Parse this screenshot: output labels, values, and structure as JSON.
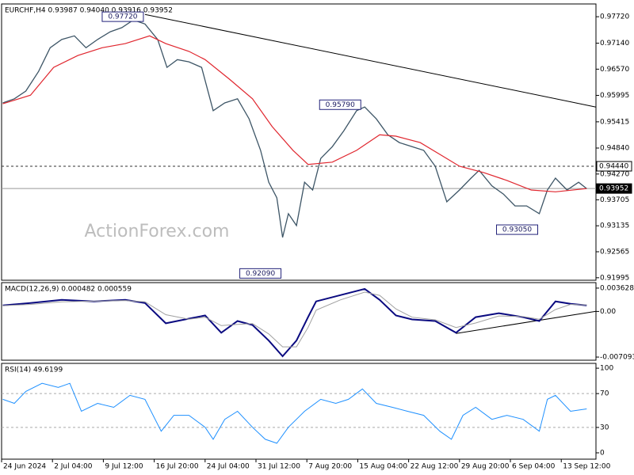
{
  "watermark": "ActionForex.com",
  "chart_data": [
    {
      "type": "line",
      "title": "EURCHF,H4  0.93987 0.94040 0.93916 0.93952",
      "xlim": [
        0,
        514
      ],
      "ylim": [
        0.9194,
        0.98
      ],
      "yticks": [
        {
          "value": 0.9772,
          "label": "0.97720"
        },
        {
          "value": 0.9714,
          "label": "0.97140"
        },
        {
          "value": 0.9657,
          "label": "0.96570"
        },
        {
          "value": 0.95995,
          "label": "0.95995"
        },
        {
          "value": 0.95415,
          "label": "0.95415"
        },
        {
          "value": 0.9484,
          "label": "0.94840"
        },
        {
          "value": 0.9427,
          "label": "0.94270"
        },
        {
          "value": 0.93705,
          "label": "0.93705"
        },
        {
          "value": 0.93135,
          "label": "0.93135"
        },
        {
          "value": 0.92565,
          "label": "0.92565"
        },
        {
          "value": 0.91995,
          "label": "0.91995"
        }
      ],
      "series": [
        {
          "name": "EURCHF",
          "color": "#3d5566",
          "width": 1.3,
          "x": [
            1,
            11,
            21,
            32,
            42,
            52,
            63,
            73,
            83,
            94,
            104,
            114,
            124,
            135,
            143,
            152,
            162,
            173,
            183,
            193,
            204,
            214,
            224,
            231,
            238,
            243,
            248,
            255,
            262,
            269,
            276,
            286,
            296,
            307,
            314,
            324,
            334,
            344,
            355,
            365,
            375,
            385,
            396,
            406,
            413,
            424,
            434,
            444,
            454,
            465,
            472,
            479,
            489,
            499,
            506
          ],
          "values": [
            0.9583,
            0.9592,
            0.9609,
            0.9652,
            0.9704,
            0.9722,
            0.973,
            0.9704,
            0.9722,
            0.9739,
            0.9748,
            0.9765,
            0.9756,
            0.9722,
            0.9661,
            0.9678,
            0.9673,
            0.9661,
            0.9566,
            0.9583,
            0.9592,
            0.9548,
            0.9479,
            0.9409,
            0.9375,
            0.9288,
            0.934,
            0.9314,
            0.9409,
            0.9392,
            0.9461,
            0.9487,
            0.9522,
            0.9566,
            0.9574,
            0.9548,
            0.9513,
            0.9496,
            0.9487,
            0.9479,
            0.9444,
            0.9366,
            0.9392,
            0.9418,
            0.9435,
            0.9401,
            0.9383,
            0.9357,
            0.9357,
            0.934,
            0.9392,
            0.9418,
            0.9392,
            0.9409,
            0.9395
          ]
        },
        {
          "name": "MA",
          "color": "#e0262e",
          "width": 1.2,
          "x": [
            1,
            25,
            45,
            66,
            87,
            107,
            128,
            142,
            162,
            176,
            197,
            217,
            234,
            252,
            265,
            286,
            307,
            327,
            341,
            362,
            379,
            396,
            417,
            437,
            458,
            479,
            506
          ],
          "values": [
            0.9581,
            0.96,
            0.9661,
            0.9687,
            0.9704,
            0.9713,
            0.973,
            0.9713,
            0.9696,
            0.9678,
            0.9635,
            0.9592,
            0.9531,
            0.9479,
            0.9448,
            0.9453,
            0.9479,
            0.9513,
            0.951,
            0.9496,
            0.947,
            0.9444,
            0.943,
            0.9413,
            0.9392,
            0.9388,
            0.9395
          ]
        }
      ],
      "trendline": {
        "color": "#000000",
        "x": [
          124,
          514
        ],
        "values": [
          0.9777,
          0.9574
        ]
      },
      "hlines": [
        {
          "value": 0.9444,
          "label": "0.94440",
          "style": "dashed",
          "fill": "#ffffff",
          "text_color": "#000000"
        },
        {
          "value": 0.93952,
          "label": "0.93952",
          "style": "solid",
          "fill": "#000000",
          "text_color": "#ffffff"
        }
      ],
      "annotations": [
        {
          "x": 124,
          "value": 0.9772,
          "label": "0.97720"
        },
        {
          "x": 312,
          "value": 0.9579,
          "label": "0.95790"
        },
        {
          "x": 243,
          "value": 0.9209,
          "label": "0.92090"
        },
        {
          "x": 465,
          "value": 0.9305,
          "label": "0.93050"
        }
      ]
    },
    {
      "type": "line",
      "title": "MACD(12,26,9) 0.000482 0.000559",
      "xlim": [
        0,
        514
      ],
      "ylim": [
        -0.00758,
        0.00448
      ],
      "yticks": [
        0.003628,
        {
          "value": 0,
          "label": "0.00"
        },
        -0.007093
      ],
      "series": [
        {
          "name": "MACD",
          "color": "#0a0a80",
          "width": 2,
          "x": [
            1,
            25,
            52,
            80,
            107,
            124,
            142,
            162,
            176,
            190,
            204,
            217,
            231,
            243,
            255,
            265,
            272,
            293,
            314,
            327,
            341,
            355,
            375,
            393,
            410,
            430,
            451,
            465,
            479,
            492,
            506
          ],
          "values": [
            0.00095,
            0.00132,
            0.0018,
            0.00156,
            0.0018,
            0.00132,
            -0.00185,
            -0.00112,
            -0.00063,
            -0.00331,
            -0.00149,
            -0.0021,
            -0.00453,
            -0.00697,
            -0.00453,
            -0.00088,
            0.00156,
            0.00253,
            0.00351,
            0.0018,
            -0.00063,
            -0.00124,
            -0.00149,
            -0.00331,
            -0.00088,
            -0.00027,
            -0.00088,
            -0.00149,
            0.00156,
            0.00119,
            0.00095
          ]
        },
        {
          "name": "Signal",
          "color": "#a0a0a0",
          "width": 1,
          "x": [
            1,
            25,
            52,
            80,
            107,
            124,
            142,
            162,
            176,
            190,
            204,
            217,
            231,
            243,
            255,
            265,
            272,
            293,
            314,
            327,
            341,
            355,
            375,
            393,
            410,
            430,
            451,
            465,
            479,
            492,
            506
          ],
          "values": [
            0.0009,
            0.0011,
            0.0015,
            0.0016,
            0.0017,
            0.0015,
            -0.0005,
            -0.0012,
            -0.0009,
            -0.0022,
            -0.002,
            -0.0019,
            -0.0035,
            -0.0055,
            -0.0055,
            -0.0025,
            0.0002,
            0.0018,
            0.003,
            0.0025,
            0.0004,
            -0.0009,
            -0.0013,
            -0.0025,
            -0.0018,
            -0.0007,
            -0.0008,
            -0.0012,
            0.0003,
            0.0011,
            0.001
          ]
        }
      ],
      "trendline": {
        "color": "#000000",
        "x": [
          393,
          514
        ],
        "values": [
          -0.00343,
          2e-05
        ]
      }
    },
    {
      "type": "line",
      "title": "RSI(14) 49.6199",
      "xlim": [
        0,
        514
      ],
      "ylim": [
        -7.5,
        105.7
      ],
      "yticks": [
        100,
        70,
        30,
        0
      ],
      "levels": [
        70,
        30
      ],
      "xticks": [
        {
          "value": 0,
          "label": "24 Jun 2024"
        },
        {
          "value": 44,
          "label": "2 Jul 04:00"
        },
        {
          "value": 88,
          "label": "9 Jul 12:00"
        },
        {
          "value": 132,
          "label": "16 Jul 20:00"
        },
        {
          "value": 176,
          "label": "24 Jul 04:00"
        },
        {
          "value": 220,
          "label": "31 Jul 12:00"
        },
        {
          "value": 264,
          "label": "7 Aug 20:00"
        },
        {
          "value": 308,
          "label": "15 Aug 04:00"
        },
        {
          "value": 352,
          "label": "22 Aug 12:00"
        },
        {
          "value": 396,
          "label": "29 Aug 20:00"
        },
        {
          "value": 440,
          "label": "6 Sep 04:00"
        },
        {
          "value": 484,
          "label": "13 Sep 12:00"
        }
      ],
      "series": [
        {
          "name": "RSI",
          "color": "#1e90ff",
          "width": 1,
          "x": [
            1,
            11,
            21,
            35,
            49,
            59,
            69,
            83,
            97,
            111,
            124,
            138,
            149,
            162,
            176,
            183,
            193,
            204,
            217,
            228,
            238,
            248,
            262,
            276,
            289,
            300,
            312,
            324,
            338,
            351,
            365,
            379,
            389,
            399,
            410,
            424,
            437,
            451,
            465,
            472,
            479,
            492,
            506
          ],
          "values": [
            63.2,
            58.5,
            72.6,
            82.1,
            77.4,
            82.1,
            49.1,
            58.5,
            53.8,
            67.9,
            63.2,
            25.5,
            44.3,
            44.3,
            30.2,
            16,
            39.6,
            49.1,
            30.2,
            16,
            11.3,
            30.2,
            49.1,
            63.2,
            58.5,
            63.2,
            75.5,
            58.5,
            53.8,
            49.1,
            44.3,
            25.5,
            16,
            44.3,
            53.8,
            39.6,
            44.3,
            39.6,
            25.5,
            63.2,
            67.9,
            49.1,
            51.9
          ]
        }
      ]
    }
  ]
}
